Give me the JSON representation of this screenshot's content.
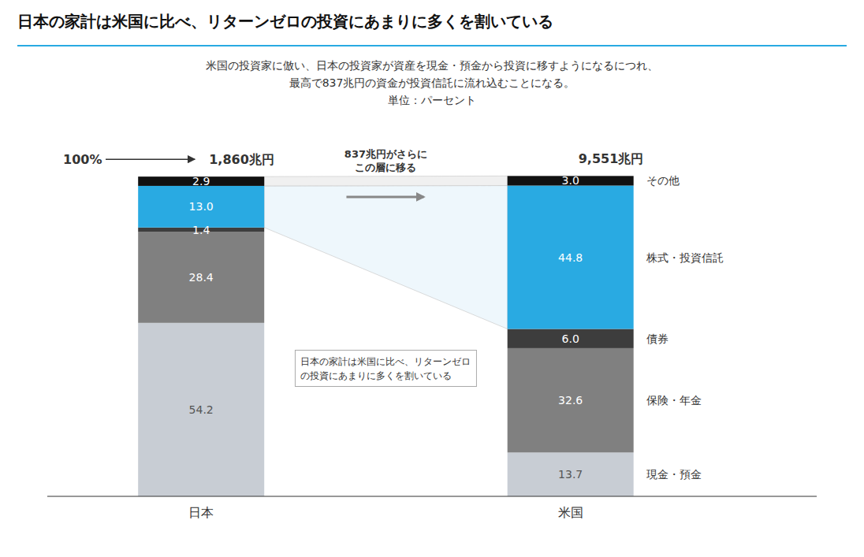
{
  "chart_data": {
    "type": "bar",
    "stacked": true,
    "data_labels": true,
    "tick_labels": "x",
    "title": "日本の家計は米国に比べ、リターンゼロの投資にあまりに多くを割いている",
    "subtitle": [
      "米国の投資家に倣い、日本の投資家が資産を現金・預金から投資に移すようになるにつれ、",
      "最高で837兆円の資金が投資信託に流れ込むことになる。",
      "単位：パーセント"
    ],
    "categories": [
      "日本",
      "米国"
    ],
    "series": [
      {
        "name": "現金・預金",
        "color": "#c8cdd4",
        "values": [
          54.2,
          13.7
        ],
        "value_labels": [
          "54.2",
          "13.7"
        ]
      },
      {
        "name": "保険・年金",
        "color": "#808080",
        "values": [
          28.4,
          32.6
        ],
        "value_labels": [
          "28.4",
          "32.6"
        ]
      },
      {
        "name": "債券",
        "color": "#3d3d3d",
        "values": [
          1.4,
          6.0
        ],
        "value_labels": [
          "1.4",
          "6.0"
        ]
      },
      {
        "name": "株式・投資信託",
        "color": "#29aae2",
        "values": [
          13.0,
          44.8
        ],
        "value_labels": [
          "13.0",
          "44.8"
        ]
      },
      {
        "name": "その他",
        "color": "#111111",
        "values": [
          2.9,
          3.0
        ],
        "value_labels": [
          "2.9",
          "3.0"
        ]
      }
    ],
    "ylim": [
      0,
      112
    ],
    "annotations": [
      "100%",
      "1,860兆円",
      "9,551兆円",
      "837兆円がさらに\nこの層に移る",
      "日本の家計は米国に比べ、リターンゼロ\nの投資にあまりに多くを割いている"
    ]
  }
}
